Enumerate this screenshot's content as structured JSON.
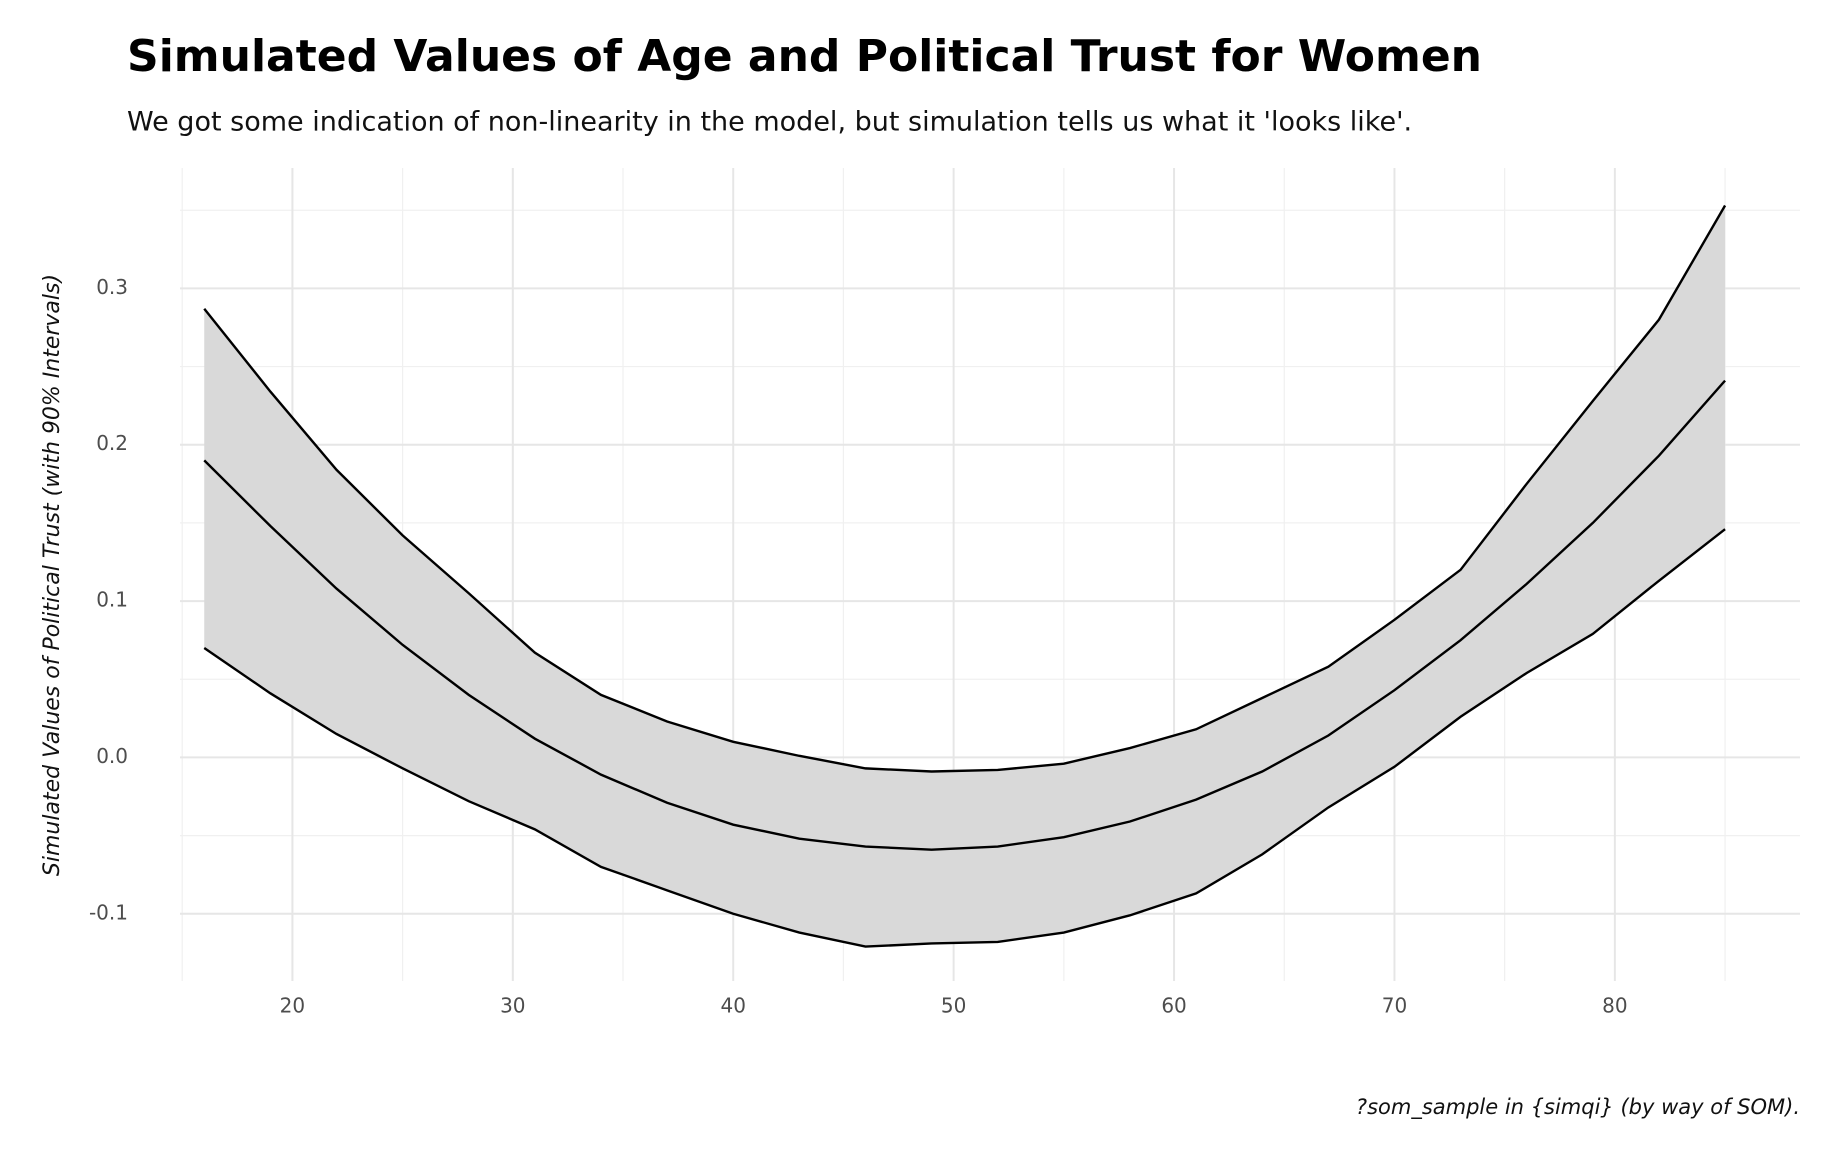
{
  "chart_data": {
    "type": "ribbon",
    "title": "Simulated Values of Age and Political Trust for Women",
    "subtitle": "We got some indication of non-linearity in the model, but simulation tells us what it 'looks like'.",
    "y_label": "Simulated Values of Political Trust (with 90% Intervals)",
    "caption": "?som_sample in {simqi} (by way of SOM).",
    "x": [
      16,
      19,
      22,
      25,
      28,
      31,
      34,
      37,
      40,
      43,
      46,
      49,
      52,
      55,
      58,
      61,
      64,
      67,
      70,
      73,
      76,
      79,
      82,
      85
    ],
    "series": [
      {
        "color": "#000000",
        "values": [
          0.07,
          0.041,
          0.015,
          -0.007,
          -0.028,
          -0.046,
          -0.07,
          -0.085,
          -0.1,
          -0.112,
          -0.121,
          -0.119,
          -0.118,
          -0.112,
          -0.101,
          -0.087,
          -0.062,
          -0.032,
          -0.006,
          0.026,
          0.054,
          0.079,
          0.113,
          0.146
        ]
      },
      {
        "color": "#000000",
        "values": [
          0.19,
          0.148,
          0.108,
          0.072,
          0.04,
          0.012,
          -0.011,
          -0.029,
          -0.043,
          -0.052,
          -0.057,
          -0.059,
          -0.057,
          -0.051,
          -0.041,
          -0.027,
          -0.009,
          0.014,
          0.043,
          0.075,
          0.111,
          0.15,
          0.193,
          0.241
        ]
      },
      {
        "color": "#000000",
        "values": [
          0.287,
          0.234,
          0.184,
          0.142,
          0.105,
          0.067,
          0.04,
          0.023,
          0.01,
          0.001,
          -0.007,
          -0.009,
          -0.008,
          -0.004,
          0.006,
          0.018,
          0.038,
          0.058,
          0.088,
          0.12,
          0.175,
          0.228,
          0.28,
          0.353
        ]
      }
    ],
    "ribbon_color": "#d9d9d9",
    "xlim": [
      14.9,
      88.4
    ],
    "xticks": [
      20,
      30,
      40,
      50,
      60,
      70,
      80
    ],
    "ylim": [
      -0.143,
      0.377
    ],
    "yticks": [
      -0.1,
      {
        "value": 0,
        "label": "0.0"
      },
      0.1,
      0.2,
      0.3
    ],
    "grid": true
  }
}
